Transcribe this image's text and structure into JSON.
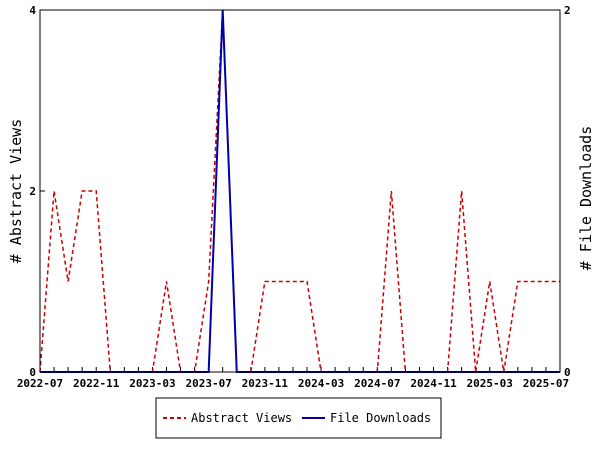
{
  "chart_data": {
    "type": "line",
    "x": [
      "2022-07",
      "2022-08",
      "2022-09",
      "2022-10",
      "2022-11",
      "2022-12",
      "2023-01",
      "2023-02",
      "2023-03",
      "2023-04",
      "2023-05",
      "2023-06",
      "2023-07",
      "2023-08",
      "2023-09",
      "2023-10",
      "2023-11",
      "2023-12",
      "2024-01",
      "2024-02",
      "2024-03",
      "2024-04",
      "2024-05",
      "2024-06",
      "2024-07",
      "2024-08",
      "2024-09",
      "2024-10",
      "2024-11",
      "2024-12",
      "2025-01",
      "2025-02",
      "2025-03",
      "2025-04",
      "2025-05",
      "2025-06",
      "2025-07",
      "2025-08"
    ],
    "x_tick_labels": [
      "2022-07",
      "2022-11",
      "2023-03",
      "2023-07",
      "2023-11",
      "2024-03",
      "2024-07",
      "2024-11",
      "2025-03",
      "2025-07"
    ],
    "series": [
      {
        "name": "Abstract Views",
        "axis": "left",
        "color": "#cc0000",
        "style": "dashed",
        "values": [
          0,
          2,
          1,
          2,
          2,
          0,
          0,
          0,
          0,
          1,
          0,
          0,
          1,
          4,
          0,
          0,
          1,
          1,
          1,
          1,
          0,
          0,
          0,
          0,
          0,
          2,
          0,
          0,
          0,
          0,
          2,
          0,
          1,
          0,
          1,
          1,
          1,
          1
        ]
      },
      {
        "name": "File Downloads",
        "axis": "right",
        "color": "#0000aa",
        "style": "solid",
        "values": [
          0,
          0,
          0,
          0,
          0,
          0,
          0,
          0,
          0,
          0,
          0,
          0,
          0,
          2,
          0,
          0,
          0,
          0,
          0,
          0,
          0,
          0,
          0,
          0,
          0,
          0,
          0,
          0,
          0,
          0,
          0,
          0,
          0,
          0,
          0,
          0,
          0,
          0
        ]
      }
    ],
    "ylabel": "# Abstract Views",
    "y2label": "# File Downloads",
    "ylim": [
      0,
      4
    ],
    "y2lim": [
      0,
      2
    ],
    "yticks": [
      0,
      2,
      4
    ],
    "y2ticks": [
      0,
      2
    ],
    "legend_position": "bottom-center",
    "grid": false
  }
}
